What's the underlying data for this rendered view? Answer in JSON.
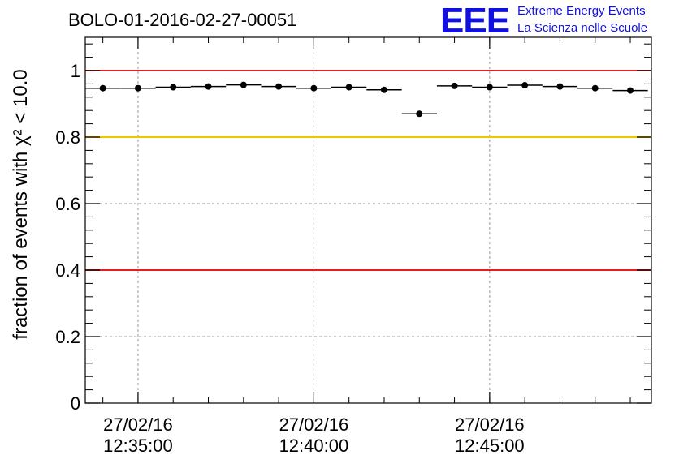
{
  "header": {
    "run_title": "BOLO-01-2016-02-27-00051",
    "logo_text": "EEE",
    "org_line1": "Extreme Energy Events",
    "org_line2": "La Scienza nelle Scuole"
  },
  "chart_data": {
    "type": "scatter",
    "title": "BOLO-01-2016-02-27-00051",
    "ylabel": "fraction of events with χ² < 10.0",
    "xlabel": "",
    "ylim": [
      0,
      1.1
    ],
    "yticks": [
      0,
      0.2,
      0.4,
      0.6,
      0.8,
      1
    ],
    "ytick_labels": [
      "0",
      "0.2",
      "0.4",
      "0.6",
      "0.8",
      "1"
    ],
    "xlim_minutes": [
      -1.5,
      14.6
    ],
    "xticks": [
      {
        "minute": 0,
        "label_date": "27/02/16",
        "label_time": "12:35:00"
      },
      {
        "minute": 5,
        "label_date": "27/02/16",
        "label_time": "12:40:00"
      },
      {
        "minute": 10,
        "label_date": "27/02/16",
        "label_time": "12:45:00"
      }
    ],
    "grid": true,
    "bin_width_minutes": 1,
    "x_minutes": [
      -1,
      0,
      1,
      2,
      3,
      4,
      5,
      6,
      7,
      8,
      9,
      10,
      11,
      12,
      13,
      14
    ],
    "values": [
      0.947,
      0.947,
      0.95,
      0.952,
      0.957,
      0.952,
      0.947,
      0.95,
      0.942,
      0.87,
      0.954,
      0.95,
      0.956,
      0.952,
      0.947,
      0.94
    ],
    "reference_lines": [
      {
        "value": 1.0,
        "color": "#e02020"
      },
      {
        "value": 0.8,
        "color": "#f5c400"
      },
      {
        "value": 0.4,
        "color": "#e02020"
      }
    ],
    "colors": {
      "points": "#000000",
      "logo": "#1010e0"
    }
  }
}
